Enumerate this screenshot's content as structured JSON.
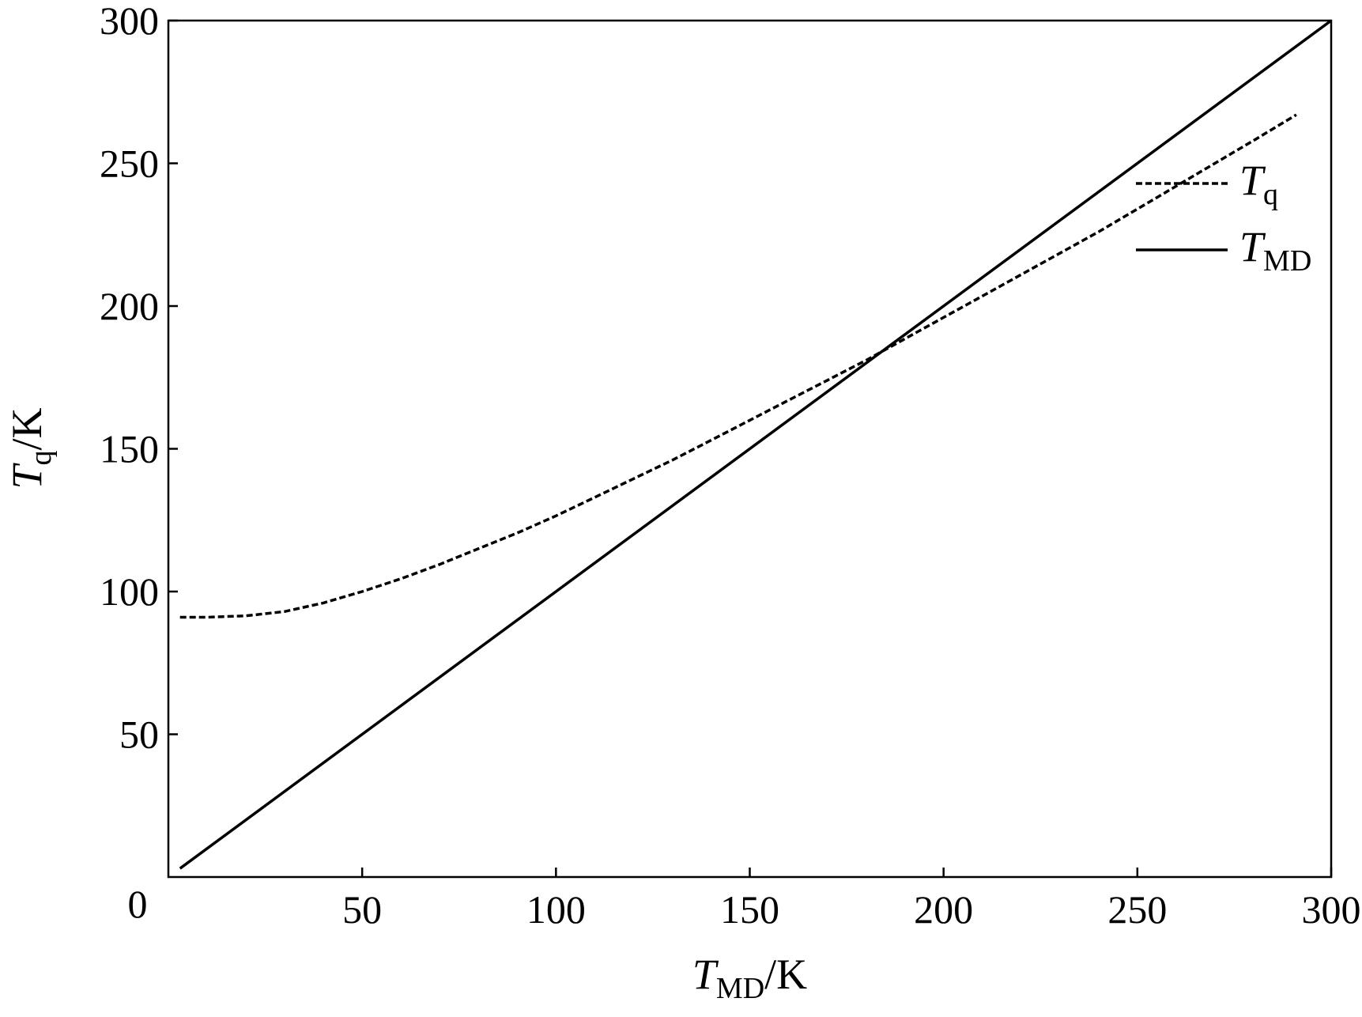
{
  "chart_data": {
    "type": "line",
    "xlabel": {
      "main": "T",
      "sub": "MD",
      "unit": "/K"
    },
    "ylabel": {
      "main": "T",
      "sub": "q",
      "unit": "/K"
    },
    "xlim": [
      0,
      300
    ],
    "ylim": [
      0,
      300
    ],
    "x_ticks": [
      50,
      100,
      150,
      200,
      250,
      300
    ],
    "y_ticks": [
      50,
      100,
      150,
      200,
      250,
      300
    ],
    "origin_label": "0",
    "grid": false,
    "legend_position": "top-right",
    "series": [
      {
        "name": {
          "main": "T",
          "sub": "q"
        },
        "style": "dashed",
        "color": "#000000",
        "x": [
          3,
          10,
          20,
          30,
          40,
          50,
          60,
          70,
          80,
          90,
          100,
          110,
          120,
          130,
          140,
          150,
          160,
          170,
          180,
          190,
          200,
          210,
          220,
          230,
          240,
          250,
          260,
          270,
          280,
          291
        ],
        "y": [
          91,
          91,
          91.5,
          93,
          96,
          100,
          104.5,
          109.5,
          115,
          120.5,
          126.5,
          133,
          139.5,
          146,
          153,
          160,
          167,
          174,
          181,
          188.5,
          196,
          203.5,
          211,
          218.5,
          226,
          234,
          242,
          250,
          258,
          267
        ]
      },
      {
        "name": {
          "main": "T",
          "sub": "MD"
        },
        "style": "solid",
        "color": "#000000",
        "x": [
          3,
          300
        ],
        "y": [
          3,
          300
        ]
      }
    ]
  }
}
